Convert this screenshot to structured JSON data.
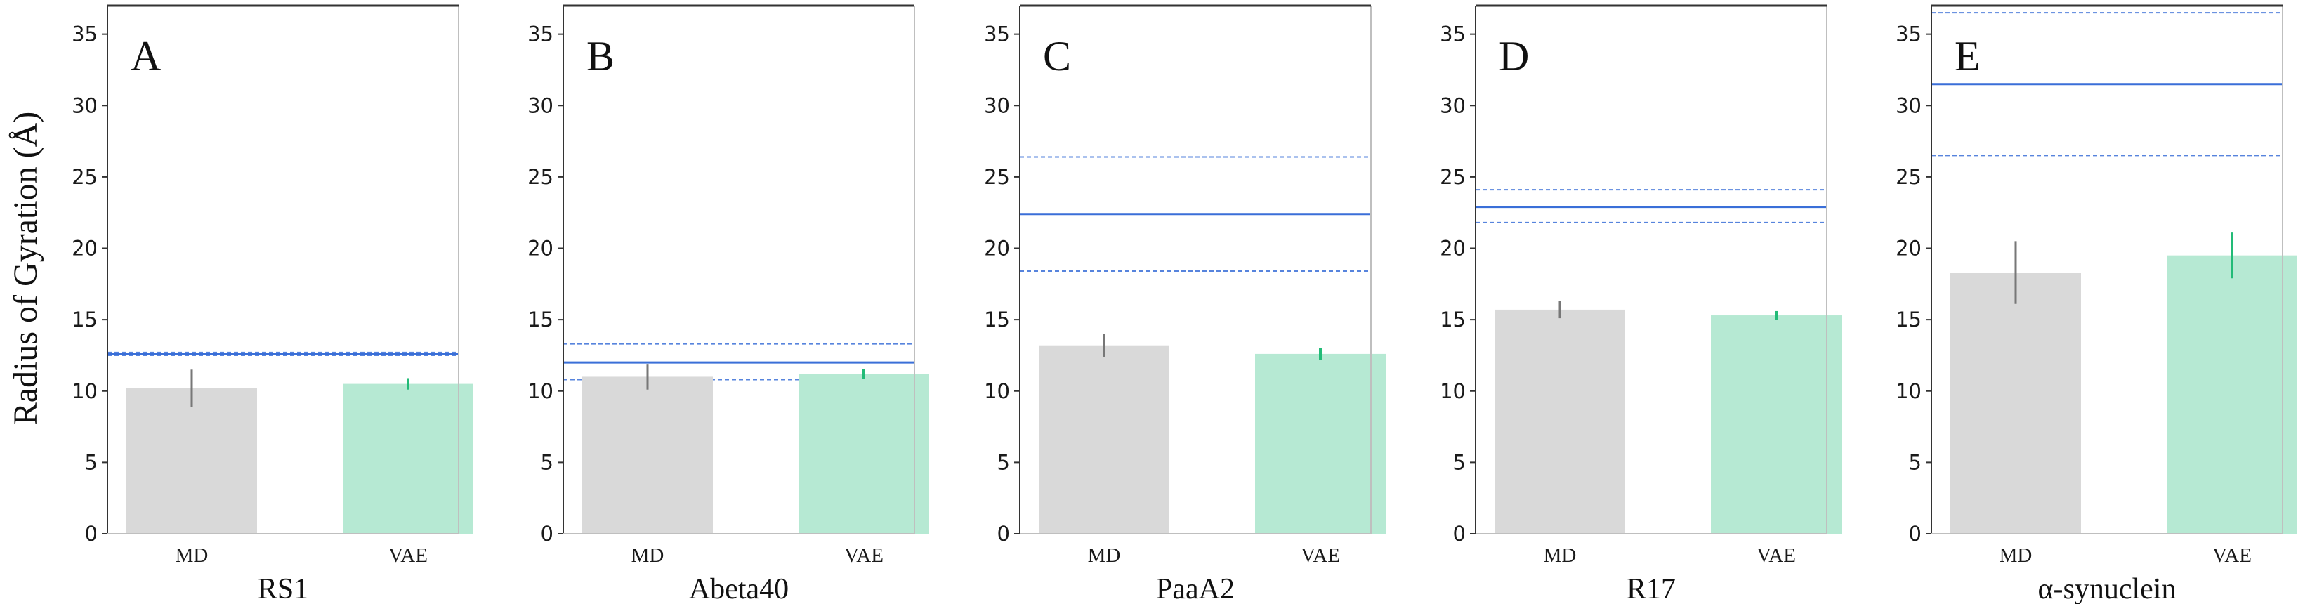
{
  "colors": {
    "md_bar": "#d9d9d9",
    "md_error": "#777777",
    "vae_bar": "#b6e9d3",
    "vae_error": "#22bb77",
    "ref_line": "#3a6fd8",
    "axis": "#333333"
  },
  "chart_data": {
    "type": "bar",
    "ylabel": "Radius of Gyration (Å)",
    "ylim": [
      0,
      37
    ],
    "yticks": [
      0,
      5,
      10,
      15,
      20,
      25,
      30,
      35
    ],
    "categories": [
      "MD",
      "VAE"
    ],
    "panels": [
      {
        "letter": "A",
        "title": "RS1",
        "values": [
          10.2,
          10.5
        ],
        "errors": [
          1.3,
          0.4
        ],
        "reference": {
          "mean": 12.6,
          "lower": 12.5,
          "upper": 12.7,
          "band_lower": null,
          "band_upper": null
        }
      },
      {
        "letter": "B",
        "title": "Abeta40",
        "values": [
          11.0,
          11.2
        ],
        "errors": [
          0.9,
          0.35
        ],
        "reference": {
          "mean": 12.0,
          "lower": 10.8,
          "upper": 13.3,
          "band_lower": null,
          "band_upper": null
        }
      },
      {
        "letter": "C",
        "title": "PaaA2",
        "values": [
          13.2,
          12.6
        ],
        "errors": [
          0.8,
          0.4
        ],
        "reference": {
          "mean": 22.4,
          "lower": 18.4,
          "upper": 26.4,
          "band_lower": null,
          "band_upper": null
        }
      },
      {
        "letter": "D",
        "title": "R17",
        "values": [
          15.7,
          15.3
        ],
        "errors": [
          0.6,
          0.3
        ],
        "reference": {
          "mean": 22.9,
          "lower": 21.8,
          "upper": 24.1,
          "band_lower": null,
          "band_upper": null
        }
      },
      {
        "letter": "E",
        "title": "α-synuclein",
        "values": [
          18.3,
          19.5
        ],
        "errors": [
          2.2,
          1.6
        ],
        "reference": {
          "mean": 31.5,
          "lower": 26.5,
          "upper": 36.5,
          "band_lower": null,
          "band_upper": null
        }
      }
    ]
  }
}
